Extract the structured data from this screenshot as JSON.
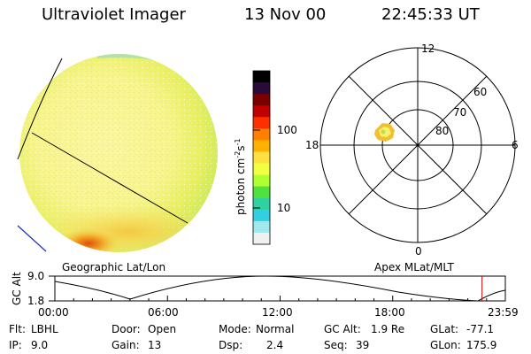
{
  "header": {
    "instrument": "Ultraviolet Imager",
    "date": "13 Nov 00",
    "time": "22:45:33 UT"
  },
  "colorbar": {
    "unit_label": "photon cm",
    "unit_sup1": "-2",
    "unit_mid": "s",
    "unit_sup2": "-1",
    "scale": "log",
    "tick_100": "100",
    "tick_10": "10",
    "colors": [
      "#000000",
      "#2a0a3a",
      "#7a0000",
      "#c00000",
      "#ff3000",
      "#ff8000",
      "#ffb000",
      "#ffe040",
      "#f0ff40",
      "#b0ff30",
      "#50e040",
      "#30d0a0",
      "#30d0e0",
      "#a0e8f0",
      "#f0f0f0"
    ]
  },
  "polar_plot": {
    "label_12": "12",
    "label_0": "0",
    "label_18": "18",
    "label_6": "6",
    "label_60": "60",
    "label_70": "70",
    "label_80": "80"
  },
  "timeline": {
    "left_label": "Geographic Lat/Lon",
    "right_label": "Apex MLat/MLT",
    "axis_title": "GC Alt",
    "y_top": "9.0",
    "y_bottom": "1.8",
    "ticks": [
      "00:00",
      "06:00",
      "12:00",
      "18:00",
      "23:59"
    ],
    "current_marker_hours": 22.76,
    "marker_color": "#c00000"
  },
  "info": {
    "flt_label": "Flt:",
    "flt_value": "LBHL",
    "ip_label": "IP:",
    "ip_value": "9.0",
    "door_label": "Door:",
    "door_value": "Open",
    "gain_label": "Gain:",
    "gain_value": "13",
    "mode_label": "Mode:",
    "mode_value": "Normal",
    "dsp_label": "Dsp:",
    "dsp_value": "2.4",
    "gcalt_label": "GC Alt:",
    "gcalt_value": "1.9 Re",
    "seq_label": "Seq:",
    "seq_value": "39",
    "glat_label": "GLat:",
    "glat_value": "-77.1",
    "glon_label": "GLon:",
    "glon_value": "175.9"
  }
}
